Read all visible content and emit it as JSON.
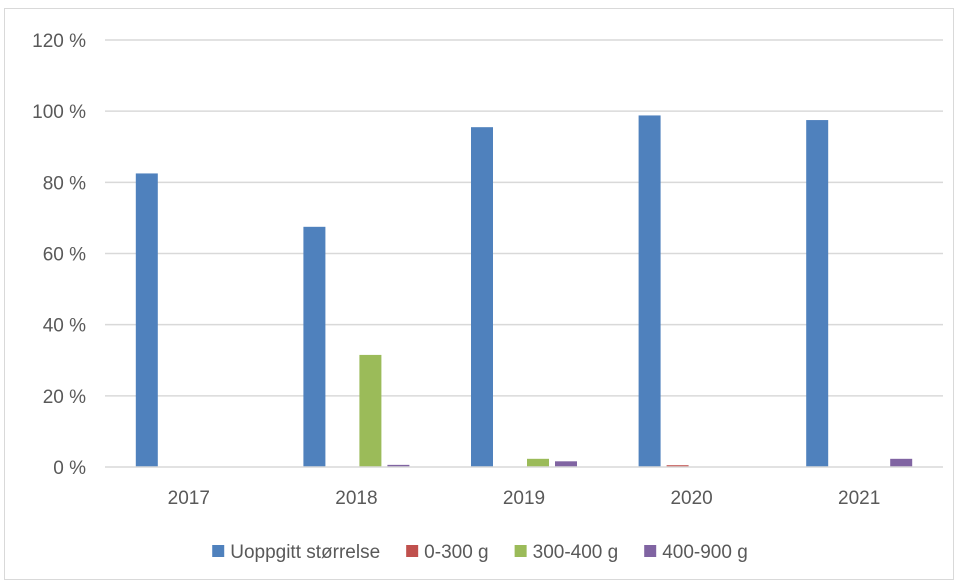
{
  "chart_data": {
    "type": "bar",
    "categories": [
      "2017",
      "2018",
      "2019",
      "2020",
      "2021"
    ],
    "series": [
      {
        "name": "Uoppgitt størrelse",
        "color": "#4f81bd",
        "values": [
          82.5,
          67.5,
          95.5,
          98.8,
          97.5
        ]
      },
      {
        "name": "0-300 g",
        "color": "#c0504d",
        "values": [
          0,
          0,
          0,
          0.5,
          0
        ]
      },
      {
        "name": "300-400 g",
        "color": "#9bbb59",
        "values": [
          0,
          31.5,
          2.3,
          0,
          0
        ]
      },
      {
        "name": "400-900 g",
        "color": "#8064a2",
        "values": [
          0,
          0.6,
          1.6,
          0,
          2.3
        ]
      }
    ],
    "ylim": [
      0,
      120
    ],
    "yticks": [
      0,
      20,
      40,
      60,
      80,
      100,
      120
    ],
    "ytick_labels": [
      "0 %",
      "20 %",
      "40 %",
      "60 %",
      "80 %",
      "100 %",
      "120 %"
    ],
    "grid": true,
    "legend": "bottom",
    "title": "",
    "xlabel": "",
    "ylabel": ""
  }
}
